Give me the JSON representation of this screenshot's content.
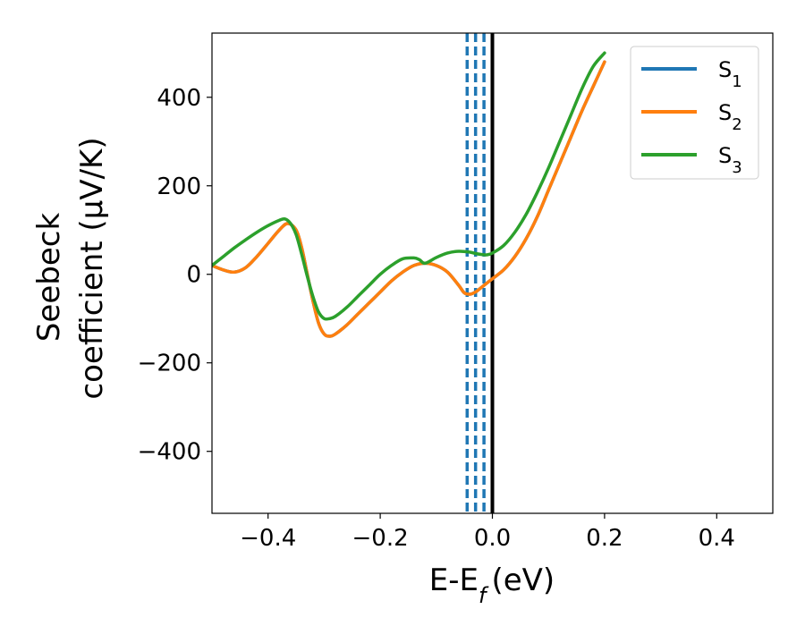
{
  "chart_data": {
    "type": "line",
    "xlabel": "E-E",
    "xlabel_sub": "f",
    "xlabel_unit": "(eV)",
    "ylabel_line1": "Seebeck",
    "ylabel_line2": "coefficient  (μV/K)",
    "xlim": [
      -0.5,
      0.5
    ],
    "ylim": [
      -540,
      545
    ],
    "x_ticks": [
      -0.4,
      -0.2,
      0.0,
      0.2,
      0.4
    ],
    "x_tick_labels": [
      "−0.4",
      "−0.2",
      "0.0",
      "0.2",
      "0.4"
    ],
    "y_ticks": [
      400,
      200,
      0,
      -200,
      -400
    ],
    "y_tick_labels": [
      "400",
      "200",
      "0",
      "−200",
      "−400"
    ],
    "grid": false,
    "legend_position": "top-right",
    "series": [
      {
        "name": "S",
        "sub": "1",
        "color": "#1f77b4",
        "x": [
          -0.5,
          -0.48,
          -0.46,
          -0.44,
          -0.42,
          -0.4,
          -0.38,
          -0.365,
          -0.35,
          -0.34,
          -0.33,
          -0.32,
          -0.31,
          -0.3,
          -0.29,
          -0.28,
          -0.26,
          -0.24,
          -0.22,
          -0.2,
          -0.18,
          -0.16,
          -0.14,
          -0.12,
          -0.1,
          -0.08,
          -0.06,
          -0.05,
          -0.04,
          -0.03,
          -0.02,
          -0.01,
          0.0,
          0.02,
          0.04,
          0.06,
          0.08,
          0.1,
          0.12,
          0.14,
          0.16,
          0.18,
          0.2
        ],
        "y": [
          20,
          10,
          5,
          15,
          40,
          70,
          100,
          115,
          100,
          60,
          0,
          -60,
          -110,
          -135,
          -140,
          -135,
          -115,
          -90,
          -65,
          -40,
          -15,
          5,
          20,
          25,
          20,
          5,
          -25,
          -42,
          -45,
          -40,
          -30,
          -20,
          -10,
          10,
          40,
          80,
          130,
          190,
          250,
          310,
          370,
          425,
          480
        ]
      },
      {
        "name": "S",
        "sub": "2",
        "color": "#ff7f0e",
        "x": [
          -0.5,
          -0.48,
          -0.46,
          -0.44,
          -0.42,
          -0.4,
          -0.38,
          -0.365,
          -0.35,
          -0.34,
          -0.33,
          -0.32,
          -0.31,
          -0.3,
          -0.29,
          -0.28,
          -0.26,
          -0.24,
          -0.22,
          -0.2,
          -0.18,
          -0.16,
          -0.14,
          -0.12,
          -0.1,
          -0.08,
          -0.06,
          -0.05,
          -0.04,
          -0.03,
          -0.02,
          -0.01,
          0.0,
          0.02,
          0.04,
          0.06,
          0.08,
          0.1,
          0.12,
          0.14,
          0.16,
          0.18,
          0.2
        ],
        "y": [
          20,
          10,
          5,
          15,
          40,
          70,
          100,
          115,
          100,
          60,
          0,
          -60,
          -110,
          -135,
          -140,
          -135,
          -115,
          -90,
          -65,
          -40,
          -15,
          5,
          20,
          25,
          20,
          5,
          -25,
          -42,
          -45,
          -40,
          -30,
          -20,
          -10,
          10,
          40,
          80,
          130,
          190,
          250,
          310,
          370,
          425,
          480
        ]
      },
      {
        "name": "S",
        "sub": "3",
        "color": "#2ca02c",
        "x": [
          -0.5,
          -0.48,
          -0.46,
          -0.44,
          -0.42,
          -0.4,
          -0.38,
          -0.37,
          -0.36,
          -0.35,
          -0.34,
          -0.33,
          -0.32,
          -0.31,
          -0.3,
          -0.29,
          -0.28,
          -0.26,
          -0.24,
          -0.22,
          -0.2,
          -0.18,
          -0.16,
          -0.14,
          -0.13,
          -0.12,
          -0.1,
          -0.08,
          -0.06,
          -0.04,
          -0.03,
          -0.02,
          -0.01,
          0.0,
          0.02,
          0.04,
          0.06,
          0.08,
          0.1,
          0.12,
          0.14,
          0.16,
          0.18,
          0.2
        ],
        "y": [
          20,
          40,
          60,
          78,
          95,
          110,
          122,
          125,
          115,
          90,
          45,
          -5,
          -50,
          -85,
          -100,
          -100,
          -95,
          -75,
          -50,
          -25,
          0,
          20,
          35,
          37,
          33,
          25,
          38,
          48,
          52,
          50,
          47,
          45,
          44,
          48,
          65,
          95,
          135,
          185,
          240,
          300,
          360,
          420,
          470,
          500
        ]
      }
    ],
    "vlines": [
      {
        "x": -0.045,
        "color": "#1f77b4",
        "style": "dashed"
      },
      {
        "x": -0.03,
        "color": "#1f77b4",
        "style": "dashed"
      },
      {
        "x": -0.015,
        "color": "#1f77b4",
        "style": "dashed"
      },
      {
        "x": 0.0,
        "color": "#000000",
        "style": "solid"
      }
    ]
  }
}
